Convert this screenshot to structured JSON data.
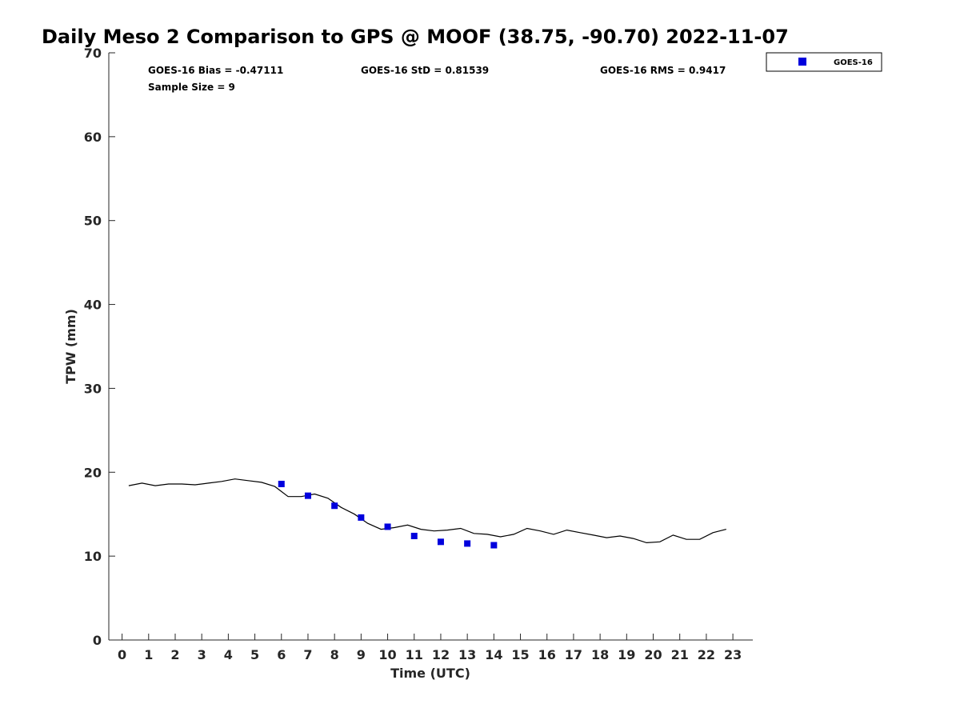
{
  "chart_data": {
    "type": "line",
    "title": "Daily Meso 2 Comparison to GPS @ MOOF (38.75, -90.70) 2022-11-07",
    "xlabel": "Time (UTC)",
    "ylabel": "TPW (mm)",
    "xlim": [
      -0.5,
      23.75
    ],
    "ylim": [
      0,
      70
    ],
    "x_ticks": [
      "0",
      "1",
      "2",
      "3",
      "4",
      "5",
      "6",
      "7",
      "8",
      "9",
      "10",
      "11",
      "12",
      "13",
      "14",
      "15",
      "16",
      "17",
      "18",
      "19",
      "20",
      "21",
      "22",
      "23"
    ],
    "y_ticks": [
      "0",
      "10",
      "20",
      "30",
      "40",
      "50",
      "60",
      "70"
    ],
    "grid": false,
    "legend_position": "top-right",
    "stats": {
      "bias": "GOES-16 Bias = -0.47111",
      "std": "GOES-16 StD = 0.81539",
      "rms": "GOES-16 RMS = 0.9417",
      "sample": "Sample Size = 9"
    },
    "series": [
      {
        "style": "line",
        "color": "#000000",
        "x": [
          0.25,
          0.75,
          1.25,
          1.75,
          2.25,
          2.75,
          3.25,
          3.75,
          4.25,
          4.75,
          5.25,
          5.75,
          6.25,
          6.75,
          7.25,
          7.75,
          8.25,
          8.75,
          9.25,
          9.75,
          10.25,
          10.75,
          11.25,
          11.75,
          12.25,
          12.75,
          13.25,
          13.75,
          14.25,
          14.75,
          15.25,
          15.75,
          16.25,
          16.75,
          17.25,
          17.75,
          18.25,
          18.75,
          19.25,
          19.75,
          20.25,
          20.75,
          21.25,
          21.75,
          22.25,
          22.75
        ],
        "values": [
          18.4,
          18.7,
          18.4,
          18.6,
          18.6,
          18.5,
          18.7,
          18.9,
          19.2,
          19.0,
          18.8,
          18.3,
          17.1,
          17.1,
          17.4,
          16.9,
          15.8,
          15.0,
          13.9,
          13.2,
          13.4,
          13.7,
          13.2,
          13.0,
          13.1,
          13.3,
          12.7,
          12.6,
          12.3,
          12.6,
          13.3,
          13.0,
          12.6,
          13.1,
          12.8,
          12.5,
          12.2,
          12.4,
          12.1,
          11.6,
          11.7,
          12.5,
          12.0,
          12.0,
          12.8,
          13.2
        ]
      },
      {
        "name": "GOES-16",
        "style": "marker",
        "marker": "square",
        "color": "#0000dd",
        "x": [
          6,
          7,
          8,
          9,
          10,
          11,
          12,
          13,
          14
        ],
        "values": [
          18.6,
          17.2,
          16.0,
          14.6,
          13.5,
          12.4,
          11.7,
          11.5,
          11.3
        ]
      }
    ]
  }
}
